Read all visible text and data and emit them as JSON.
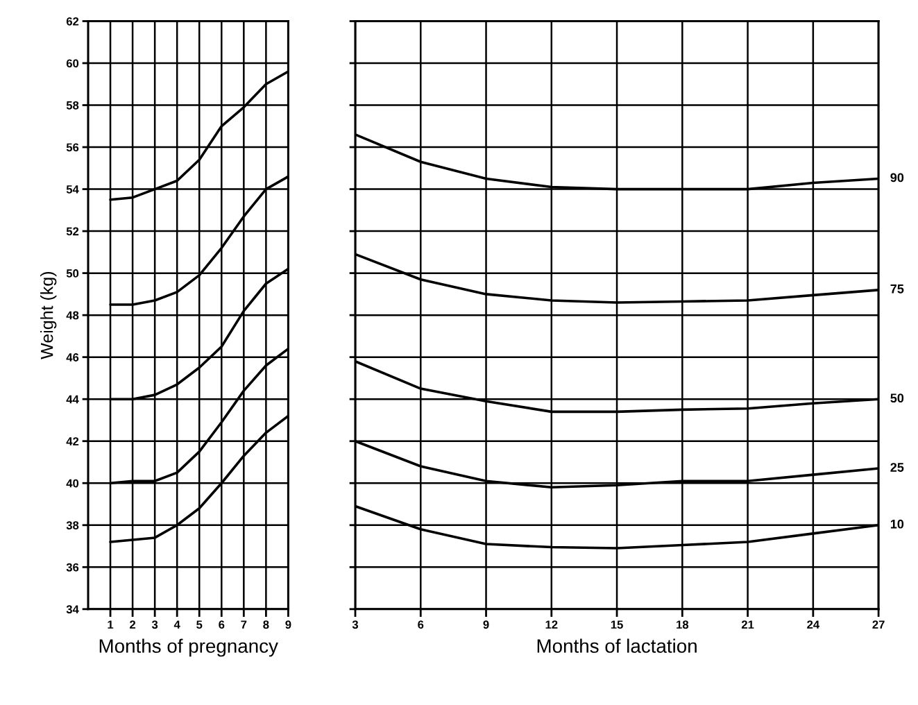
{
  "chart_data": [
    {
      "type": "line",
      "xlabel": "Months of pregnancy",
      "ylabel": "Weight (kg)",
      "x": [
        1,
        2,
        3,
        4,
        5,
        6,
        7,
        8,
        9
      ],
      "xlim": [
        0,
        9
      ],
      "xticks": [
        1,
        2,
        3,
        4,
        5,
        6,
        7,
        8,
        9
      ],
      "ylim": [
        34,
        62
      ],
      "yticks": [
        34,
        36,
        38,
        40,
        42,
        44,
        46,
        48,
        50,
        52,
        54,
        56,
        58,
        60,
        62
      ],
      "grid": true,
      "legend": false,
      "marker": "none",
      "line_style": "solid",
      "series": [
        {
          "color": "#000000",
          "values": [
            53.5,
            53.6,
            54.0,
            54.4,
            55.4,
            57.0,
            57.9,
            59.0,
            59.6
          ]
        },
        {
          "color": "#000000",
          "values": [
            48.5,
            48.5,
            48.7,
            49.1,
            49.9,
            51.2,
            52.7,
            54.0,
            54.6
          ]
        },
        {
          "color": "#000000",
          "values": [
            44.0,
            44.0,
            44.2,
            44.7,
            45.5,
            46.5,
            48.2,
            49.5,
            50.2
          ]
        },
        {
          "color": "#000000",
          "values": [
            40.0,
            40.1,
            40.1,
            40.5,
            41.5,
            42.9,
            44.4,
            45.6,
            46.4
          ]
        },
        {
          "color": "#000000",
          "values": [
            37.2,
            37.3,
            37.4,
            38.0,
            38.8,
            40.0,
            41.3,
            42.4,
            43.2
          ]
        }
      ]
    },
    {
      "type": "line",
      "xlabel": "Months of lactation",
      "x": [
        3,
        6,
        9,
        12,
        15,
        18,
        21,
        24,
        27
      ],
      "xlim": [
        3,
        27
      ],
      "xticks": [
        3,
        6,
        9,
        12,
        15,
        18,
        21,
        24,
        27
      ],
      "ylim": [
        34,
        62
      ],
      "yticks": [
        34,
        36,
        38,
        40,
        42,
        44,
        46,
        48,
        50,
        52,
        54,
        56,
        58,
        60,
        62
      ],
      "tick_labels": "x",
      "grid": true,
      "legend": false,
      "marker": "none",
      "line_style": "solid",
      "series": [
        {
          "name": "90",
          "color": "#000000",
          "values": [
            56.6,
            55.3,
            54.5,
            54.1,
            54.0,
            54.0,
            54.0,
            54.3,
            54.5
          ]
        },
        {
          "name": "75",
          "color": "#000000",
          "values": [
            50.9,
            49.7,
            49.0,
            48.7,
            48.6,
            48.65,
            48.7,
            48.95,
            49.2
          ]
        },
        {
          "name": "50",
          "color": "#000000",
          "values": [
            45.8,
            44.5,
            43.9,
            43.4,
            43.4,
            43.5,
            43.55,
            43.8,
            44.0
          ]
        },
        {
          "name": "25",
          "color": "#000000",
          "values": [
            42.0,
            40.8,
            40.1,
            39.8,
            39.9,
            40.1,
            40.1,
            40.4,
            40.7
          ]
        },
        {
          "name": "10",
          "color": "#000000",
          "values": [
            38.9,
            37.8,
            37.1,
            36.95,
            36.9,
            37.05,
            37.2,
            37.6,
            38.0
          ]
        }
      ]
    }
  ]
}
